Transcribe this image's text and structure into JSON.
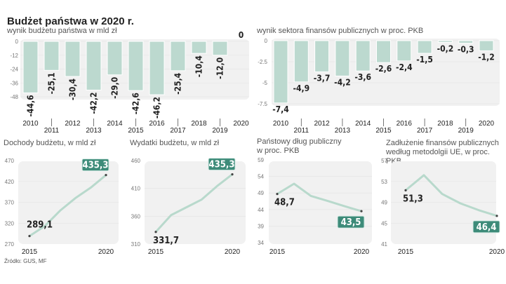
{
  "title": "Budżet państwa w 2020 r.",
  "source": "Źródło: GUS, MF",
  "colors": {
    "bar": "#bcd9cf",
    "line": "#b8d9cc",
    "highlight": "#3d8b79",
    "plot_bg": "#f1f1f1",
    "text": "#222222"
  },
  "chart_data": [
    {
      "type": "bar",
      "subtitle": "wynik budżetu państwa w mld zł",
      "categories": [
        "2010",
        "2011",
        "2012",
        "2013",
        "2014",
        "2015",
        "2016",
        "2017",
        "2018",
        "2019",
        "2020"
      ],
      "values": [
        -44.6,
        -25.1,
        -30.4,
        -42.2,
        -29.0,
        -42.6,
        -46.2,
        -25.4,
        -10.4,
        -12.0,
        0
      ],
      "labels": [
        "-44,6",
        "-25,1",
        "-30,4",
        "-42,2",
        "-29,0",
        "-42,6",
        "-46,2",
        "-25,4",
        "-10,4",
        "-12,0",
        "0"
      ],
      "yticks": [
        "0",
        "-12",
        "-24",
        "-36",
        "-48"
      ],
      "ylim": [
        -48,
        0
      ],
      "grid": true
    },
    {
      "type": "bar",
      "subtitle": "wynik sektora finansów publicznych w proc. PKB",
      "categories": [
        "2010",
        "2011",
        "2012",
        "2013",
        "2014",
        "2015",
        "2016",
        "2017",
        "2018",
        "2019",
        "2020"
      ],
      "values": [
        -7.4,
        -4.9,
        -3.7,
        -4.2,
        -3.6,
        -2.6,
        -2.4,
        -1.5,
        -0.2,
        -0.3,
        -1.2
      ],
      "labels": [
        "-7,4",
        "-4,9",
        "-3,7",
        "-4,2",
        "-3,6",
        "-2,6",
        "-2,4",
        "-1,5",
        "-0,2",
        "-0,3",
        "-1,2"
      ],
      "yticks": [
        "0",
        "-2.5",
        "-5",
        "-7.5"
      ],
      "ylim": [
        -7.5,
        0
      ],
      "grid": true
    },
    {
      "type": "line",
      "subtitle": "Dochody budżetu, w mld zł",
      "x": [
        2015,
        2016,
        2017,
        2018,
        2019,
        2020
      ],
      "values": [
        289.1,
        313,
        350,
        380,
        405,
        435.3
      ],
      "start_label": "289,1",
      "end_label": "435,3",
      "xticks": [
        "2015",
        "2020"
      ],
      "yticks": [
        "470",
        "420",
        "370",
        "320",
        "270"
      ],
      "ylim": [
        270,
        470
      ]
    },
    {
      "type": "line",
      "subtitle": "Wydatki budżetu, w mld zł",
      "x": [
        2015,
        2016,
        2017,
        2018,
        2019,
        2020
      ],
      "values": [
        331.7,
        362,
        376,
        390,
        414,
        435.3
      ],
      "start_label": "331,7",
      "end_label": "435,3",
      "xticks": [
        "2015",
        "2020"
      ],
      "yticks": [
        "460",
        "410",
        "360",
        "310"
      ],
      "ylim": [
        310,
        460
      ]
    },
    {
      "type": "line",
      "subtitle": "Państowy dług publiczny",
      "subtitle2": "w proc. PKB",
      "x": [
        2015,
        2016,
        2017,
        2018,
        2019,
        2020
      ],
      "values": [
        48.7,
        51.8,
        48.1,
        46.6,
        45.0,
        43.5
      ],
      "start_label": "48,7",
      "end_label": "43,5",
      "xticks": [
        "2015",
        "2020"
      ],
      "yticks": [
        "59",
        "54",
        "49",
        "44",
        "39",
        "34"
      ],
      "ylim": [
        34,
        59
      ]
    },
    {
      "type": "line",
      "subtitle": "Zadłużenie finansów publicznych",
      "subtitle2": "według metodolgii UE, w proc. PKB",
      "x": [
        2015,
        2016,
        2017,
        2018,
        2019,
        2020
      ],
      "values": [
        51.3,
        54.2,
        50.6,
        48.8,
        47.5,
        46.4
      ],
      "start_label": "51,3",
      "end_label": "46,4",
      "xticks": [
        "2015",
        "2020"
      ],
      "yticks": [
        "57",
        "53",
        "49",
        "45",
        "41"
      ],
      "ylim": [
        41,
        57
      ]
    }
  ]
}
